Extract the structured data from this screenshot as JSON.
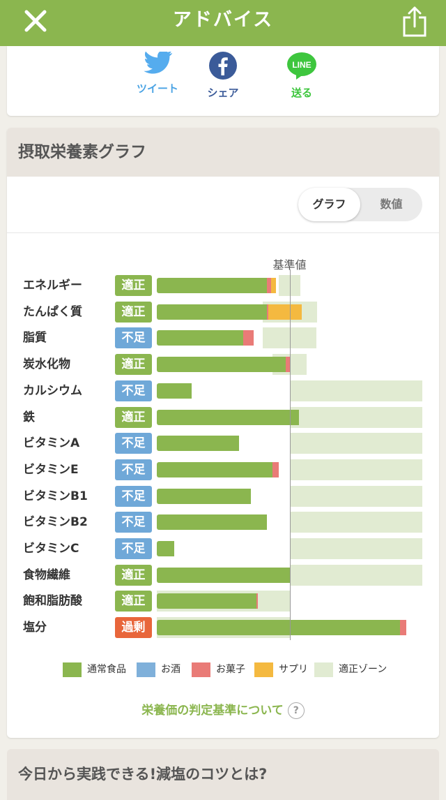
{
  "header": {
    "title": "アドバイス"
  },
  "share": {
    "twitter": "ツイート",
    "facebook": "シェア",
    "line_icon_text": "LINE",
    "line": "送る"
  },
  "graph_card": {
    "title": "摂取栄養素グラフ",
    "toggle": {
      "graph": "グラフ",
      "value": "数値"
    },
    "reference_label": "基準値",
    "criteria_link": "栄養価の判定基準について",
    "criteria_help": "?"
  },
  "colors": {
    "food": "#8bb64f",
    "alcohol": "#7fb0da",
    "snack": "#e97b77",
    "supplement": "#f4b940",
    "zone": "#e1ebd2",
    "badge_ok": "#8bb64f",
    "badge_low": "#6fa8d8",
    "badge_over": "#e8663b"
  },
  "legend": [
    {
      "label": "通常食品",
      "color": "#8bb64f"
    },
    {
      "label": "お酒",
      "color": "#7fb0da"
    },
    {
      "label": "お菓子",
      "color": "#e97b77"
    },
    {
      "label": "サプリ",
      "color": "#f4b940"
    },
    {
      "label": "適正ゾーン",
      "color": "#e1ebd2"
    }
  ],
  "chart_data": {
    "type": "bar",
    "stacked": true,
    "reference_value": 100,
    "unit": "% of reference",
    "xlim": [
      0,
      200
    ],
    "categories": [
      "エネルギー",
      "たんぱく質",
      "脂質",
      "炭水化物",
      "カルシウム",
      "鉄",
      "ビタミンA",
      "ビタミンE",
      "ビタミンB1",
      "ビタミンB2",
      "ビタミンC",
      "食物繊維",
      "飽和脂肪酸",
      "塩分"
    ],
    "status": [
      "適正",
      "適正",
      "不足",
      "適正",
      "不足",
      "適正",
      "不足",
      "不足",
      "不足",
      "不足",
      "不足",
      "適正",
      "適正",
      "過剰"
    ],
    "series": [
      {
        "name": "通常食品",
        "values": [
          83,
          83,
          65,
          97,
          26,
          107,
          62,
          87,
          71,
          83,
          13,
          100,
          75,
          183
        ]
      },
      {
        "name": "お酒",
        "values": [
          0,
          0,
          0,
          0,
          0,
          0,
          0,
          0,
          0,
          0,
          0,
          0,
          0,
          0
        ]
      },
      {
        "name": "お菓子",
        "values": [
          3,
          1,
          8,
          4,
          0,
          0,
          0,
          5,
          0,
          0,
          0,
          1,
          1,
          5
        ]
      },
      {
        "name": "サプリ",
        "values": [
          4,
          25,
          0,
          0,
          0,
          0,
          0,
          0,
          0,
          0,
          0,
          0,
          0,
          0
        ]
      }
    ],
    "adequate_zone": [
      [
        92,
        108
      ],
      [
        80,
        121
      ],
      [
        80,
        120
      ],
      [
        87,
        113
      ],
      [
        100,
        200
      ],
      [
        100,
        200
      ],
      [
        100,
        200
      ],
      [
        100,
        200
      ],
      [
        100,
        200
      ],
      [
        100,
        200
      ],
      [
        100,
        200
      ],
      [
        100,
        200
      ],
      [
        0,
        100
      ],
      [
        0,
        100
      ]
    ]
  },
  "next_card": {
    "title": "今日から実践できる!減塩のコツとは?"
  }
}
